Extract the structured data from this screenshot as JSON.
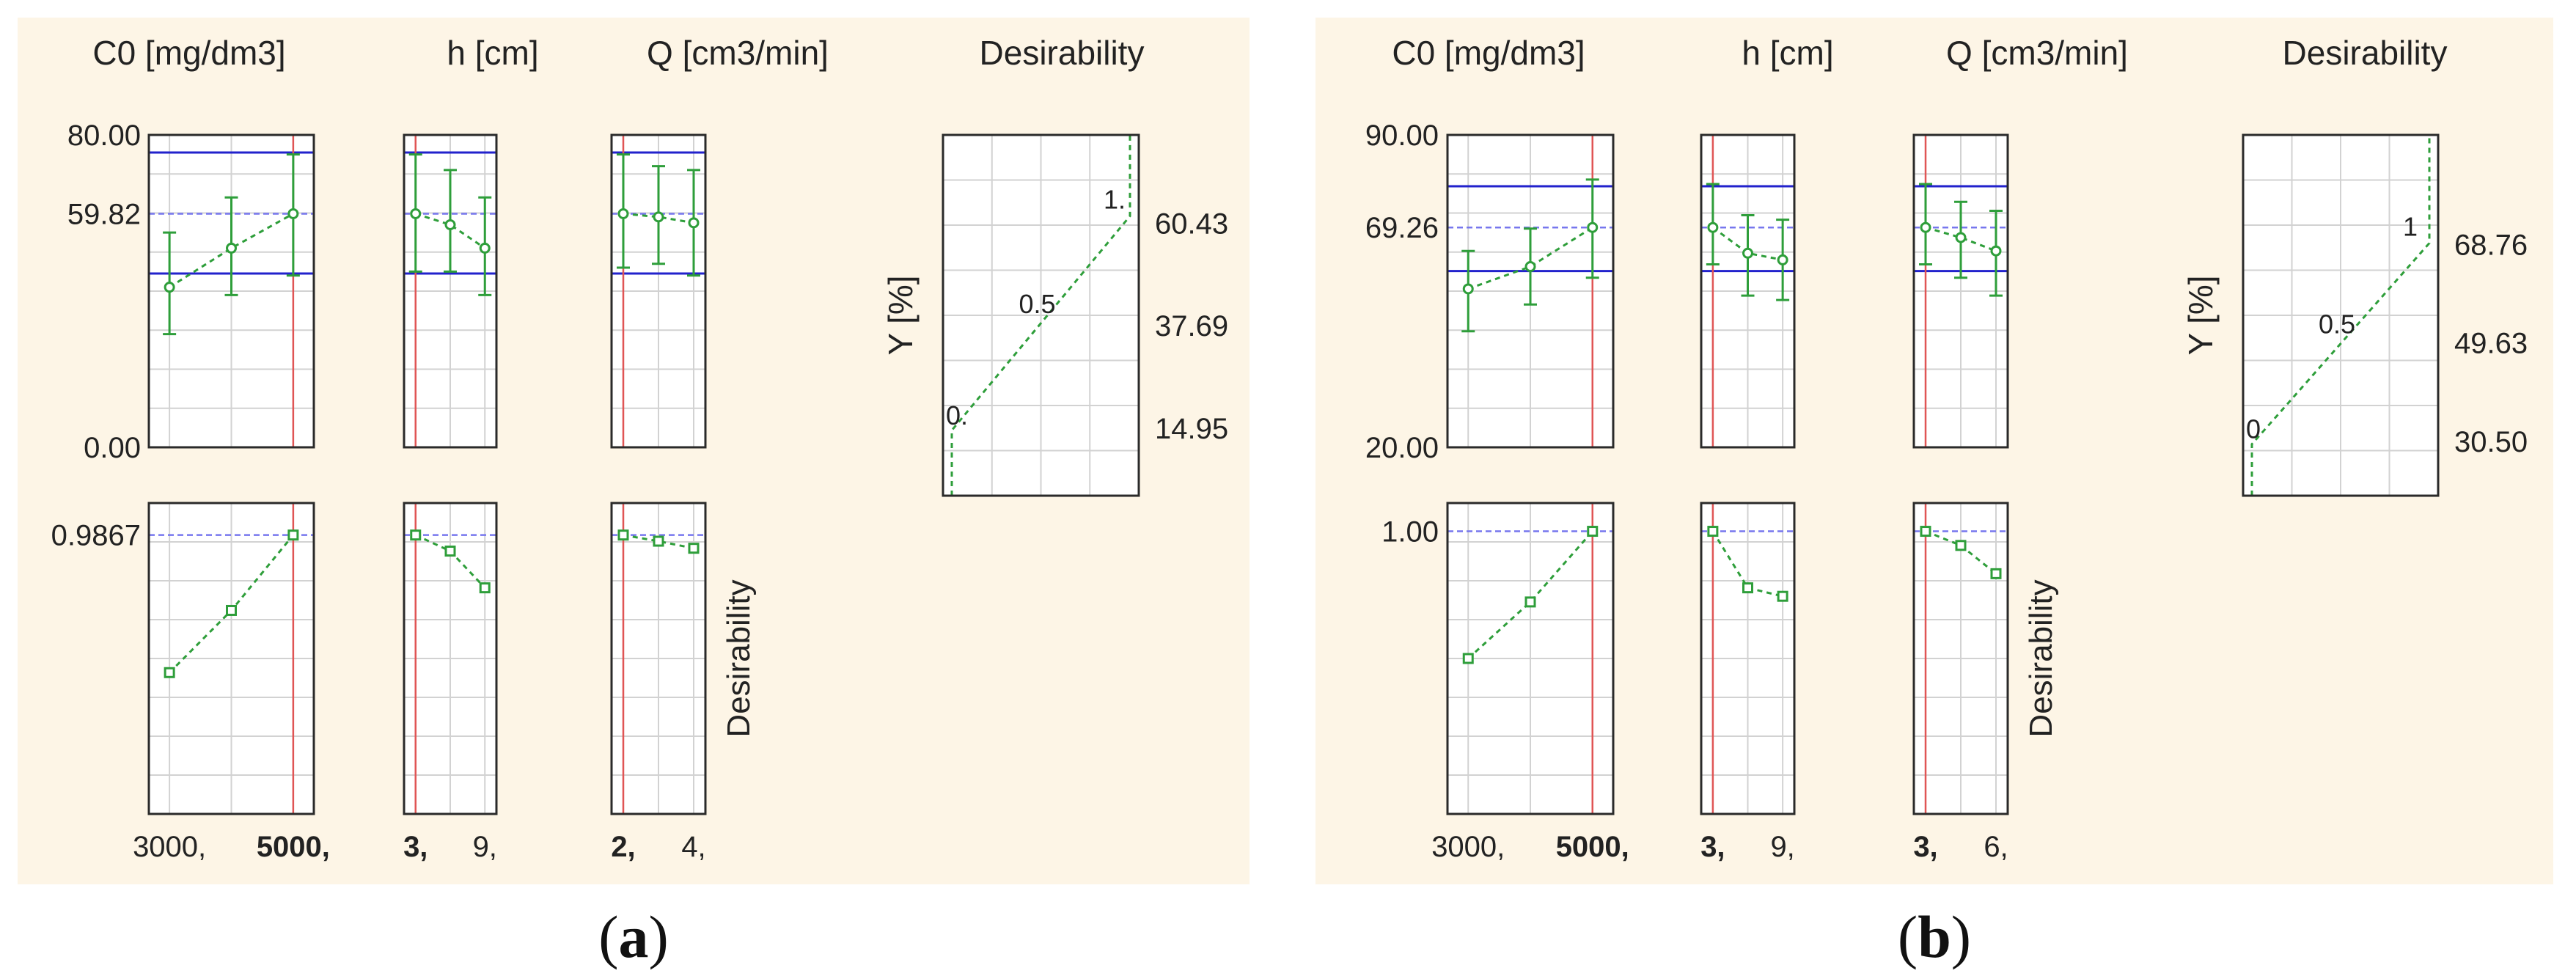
{
  "colors": {
    "background": "#fdf5e6",
    "frame_border": "#2a2a2a",
    "grid": "#d2d2d2",
    "limit_line": "#2222cc",
    "current_line": "#7777ee",
    "series": "#2e9e3a",
    "factor_line": "#e05555"
  },
  "panels": [
    {
      "caption_letter": "a",
      "headers": {
        "c0": "C0 [mg/dm3]",
        "h": "h [cm]",
        "q": "Q [cm3/min]",
        "des": "Desirability"
      },
      "y_axis": {
        "min_label": "0.00",
        "max_label": "80.00",
        "current_label": "59.82",
        "lower_bound": 44.5,
        "upper_bound": 75.5,
        "current": 59.82,
        "min": 0,
        "max": 80
      },
      "des_axis": {
        "current_label": "0.9867",
        "current": 0.9867,
        "min": 0.0,
        "max": 1.1
      },
      "row_label": "Desirability",
      "factors": {
        "c0": {
          "ticks": [
            "3000,",
            "5000,"
          ],
          "tick_bold": [
            false,
            true
          ],
          "points": [
            {
              "y": 41,
              "lo": 29,
              "hi": 55
            },
            {
              "y": 51,
              "lo": 39,
              "hi": 64
            },
            {
              "y": 59.82,
              "lo": 44,
              "hi": 75
            }
          ],
          "desirability": [
            0.5,
            0.72,
            0.9867
          ],
          "current": 2
        },
        "h": {
          "ticks": [
            "3,",
            "9,"
          ],
          "tick_bold": [
            true,
            false
          ],
          "points": [
            {
              "y": 59.82,
              "lo": 45,
              "hi": 75
            },
            {
              "y": 57,
              "lo": 45,
              "hi": 71
            },
            {
              "y": 51,
              "lo": 39,
              "hi": 64
            }
          ],
          "desirability": [
            0.9867,
            0.93,
            0.8
          ],
          "current": 0
        },
        "q": {
          "ticks": [
            "2,",
            "4,"
          ],
          "tick_bold": [
            true,
            false
          ],
          "points": [
            {
              "y": 59.82,
              "lo": 46,
              "hi": 75
            },
            {
              "y": 59,
              "lo": 47,
              "hi": 72
            },
            {
              "y": 57.5,
              "lo": 44,
              "hi": 71
            }
          ],
          "desirability": [
            0.9867,
            0.965,
            0.94
          ],
          "current": 0
        }
      },
      "desirability_plot": {
        "ylabel": "Y [%]",
        "ticks": [
          "60.43",
          "37.69",
          "14.95"
        ],
        "tick_values": [
          60.43,
          37.69,
          14.95
        ],
        "point_labels": [
          "0.",
          "0.5",
          "1."
        ],
        "y_min": 0,
        "y_max": 80,
        "rise_start_y": 14.5,
        "rise_end_y": 62.0
      }
    },
    {
      "caption_letter": "b",
      "headers": {
        "c0": "C0 [mg/dm3]",
        "h": "h [cm]",
        "q": "Q [cm3/min]",
        "des": "Desirability"
      },
      "y_axis": {
        "min_label": "20.00",
        "max_label": "90.00",
        "current_label": "69.26",
        "lower_bound": 59.5,
        "upper_bound": 78.5,
        "current": 69.26,
        "min": 20,
        "max": 90
      },
      "des_axis": {
        "current_label": "1.00",
        "current": 1.0,
        "min": 0.0,
        "max": 1.1
      },
      "row_label": "Desirability",
      "factors": {
        "c0": {
          "ticks": [
            "3000,",
            "5000,"
          ],
          "tick_bold": [
            false,
            true
          ],
          "points": [
            {
              "y": 55.5,
              "lo": 46,
              "hi": 64
            },
            {
              "y": 60.5,
              "lo": 52,
              "hi": 69
            },
            {
              "y": 69.26,
              "lo": 58,
              "hi": 80
            }
          ],
          "desirability": [
            0.55,
            0.75,
            1.0
          ],
          "current": 2
        },
        "h": {
          "ticks": [
            "3,",
            "9,"
          ],
          "tick_bold": [
            true,
            false
          ],
          "points": [
            {
              "y": 69.26,
              "lo": 61,
              "hi": 79
            },
            {
              "y": 63.5,
              "lo": 54,
              "hi": 72
            },
            {
              "y": 62,
              "lo": 53,
              "hi": 71
            }
          ],
          "desirability": [
            1.0,
            0.8,
            0.77
          ],
          "current": 0
        },
        "q": {
          "ticks": [
            "3,",
            "6,"
          ],
          "tick_bold": [
            true,
            false
          ],
          "points": [
            {
              "y": 69.26,
              "lo": 61,
              "hi": 79
            },
            {
              "y": 67,
              "lo": 58,
              "hi": 75
            },
            {
              "y": 64,
              "lo": 54,
              "hi": 73
            }
          ],
          "desirability": [
            1.0,
            0.95,
            0.85
          ],
          "current": 0
        }
      },
      "desirability_plot": {
        "ylabel": "Y [%]",
        "ticks": [
          "68.76",
          "49.63",
          "30.50"
        ],
        "tick_values": [
          68.76,
          49.63,
          30.5
        ],
        "point_labels": [
          "0",
          "0.5",
          "1"
        ],
        "y_min": 20,
        "y_max": 90,
        "rise_start_y": 30.0,
        "rise_end_y": 69.0
      }
    }
  ]
}
